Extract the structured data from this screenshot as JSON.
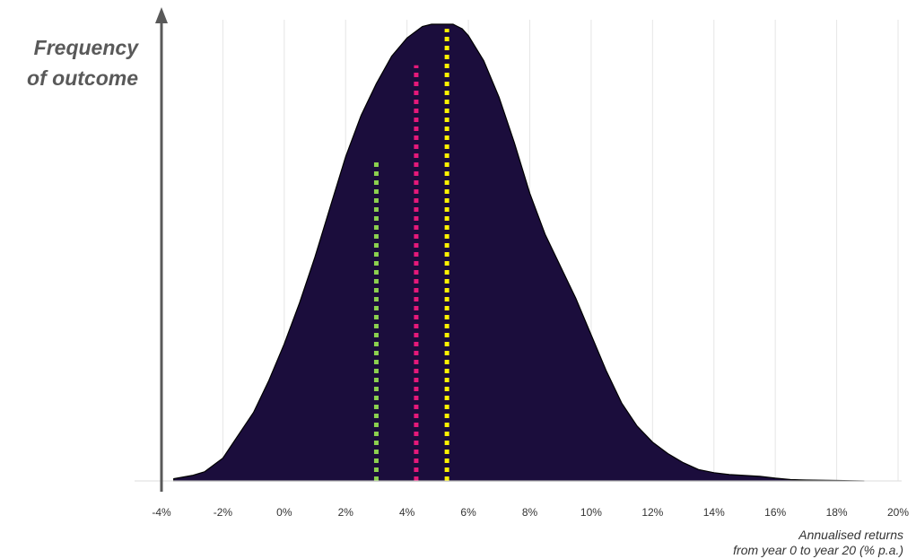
{
  "chart_data": {
    "type": "area",
    "ylabel_lines": [
      "Frequency",
      "of outcome"
    ],
    "xlabel_lines": [
      "Annualised returns",
      "from year 0 to year 20 (% p.a.)"
    ],
    "x_ticks": [
      "-4%",
      "-2%",
      "0%",
      "2%",
      "4%",
      "6%",
      "8%",
      "10%",
      "12%",
      "14%",
      "16%",
      "18%",
      "20%"
    ],
    "x_tick_values": [
      -4,
      -2,
      0,
      2,
      4,
      6,
      8,
      10,
      12,
      14,
      16,
      18,
      20
    ],
    "xlim": [
      -4,
      20
    ],
    "ylim": [
      0,
      1
    ],
    "grid": "vertical",
    "series": [
      {
        "x": [
          -3.6,
          -3.0,
          -2.6,
          -2.0,
          -1.5,
          -1.0,
          -0.5,
          0.0,
          0.5,
          1.0,
          1.5,
          2.0,
          2.5,
          3.0,
          3.5,
          4.0,
          4.5,
          4.8,
          5.0,
          5.2,
          5.5,
          5.8,
          6.0,
          6.5,
          7.0,
          7.5,
          8.0,
          8.5,
          9.0,
          9.5,
          10.0,
          10.5,
          11.0,
          11.5,
          12.0,
          12.5,
          13.0,
          13.5,
          14.0,
          14.5,
          15.0,
          15.5,
          16.0,
          16.5,
          17.0,
          18.0,
          18.9
        ],
        "y": [
          0.005,
          0.012,
          0.02,
          0.05,
          0.1,
          0.15,
          0.22,
          0.3,
          0.39,
          0.49,
          0.6,
          0.71,
          0.8,
          0.87,
          0.93,
          0.97,
          0.995,
          1.0,
          1.0,
          1.0,
          1.0,
          0.99,
          0.975,
          0.92,
          0.84,
          0.74,
          0.63,
          0.54,
          0.47,
          0.4,
          0.32,
          0.24,
          0.17,
          0.12,
          0.085,
          0.06,
          0.04,
          0.025,
          0.018,
          0.014,
          0.012,
          0.01,
          0.006,
          0.003,
          0.002,
          0.001,
          0.0
        ]
      }
    ],
    "colors": {
      "fill": "#1b0d3c",
      "outline": "#000000",
      "grid": "#e6e6e6",
      "axis": "#595959"
    },
    "markers": [
      {
        "x": 3.0,
        "y": 0.7,
        "color": "#8cd14f"
      },
      {
        "x": 4.3,
        "y": 0.91,
        "color": "#e6197a"
      },
      {
        "x": 5.3,
        "y": 0.99,
        "color": "#fff200"
      }
    ]
  }
}
